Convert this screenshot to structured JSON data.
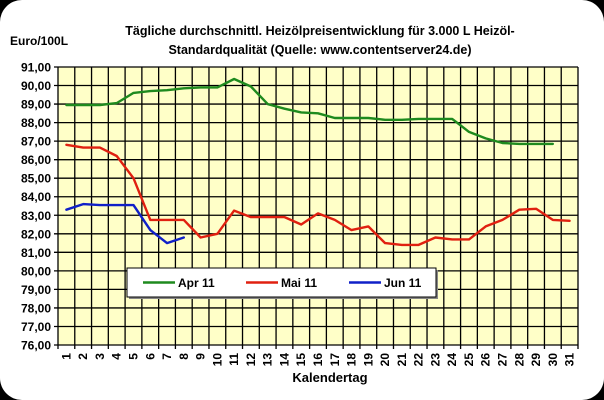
{
  "chart": {
    "title_line1": "Tägliche durchschnittl. Heizölpreisentwicklung für 3.000 L Heizöl-",
    "title_line2": "Standardqualität (Quelle: www.contentserver24.de)",
    "y_unit_label": "Euro/100L",
    "x_axis_label": "Kalendertag"
  },
  "chart_data": {
    "type": "line",
    "title": "Tägliche durchschnittl. Heizölpreisentwicklung für 3.000 L Heizöl-Standardqualität (Quelle: www.contentserver24.de)",
    "xlabel": "Kalendertag",
    "ylabel": "Euro/100L",
    "ylim": [
      76,
      91
    ],
    "yticks": [
      "91,00",
      "90,00",
      "89,00",
      "88,00",
      "87,00",
      "86,00",
      "85,00",
      "84,00",
      "83,00",
      "82,00",
      "81,00",
      "80,00",
      "79,00",
      "78,00",
      "77,00",
      "76,00"
    ],
    "x": [
      1,
      2,
      3,
      4,
      5,
      6,
      7,
      8,
      9,
      10,
      11,
      12,
      13,
      14,
      15,
      16,
      17,
      18,
      19,
      20,
      21,
      22,
      23,
      24,
      25,
      26,
      27,
      28,
      29,
      30,
      31
    ],
    "grid": true,
    "legend_position": "inside-bottom-left",
    "background_color": "#FFFFC8",
    "series": [
      {
        "name": "Apr 11",
        "color": "#1E8A1E",
        "values": [
          88.95,
          88.95,
          88.95,
          89.05,
          89.6,
          89.7,
          89.75,
          89.85,
          89.9,
          89.9,
          90.35,
          89.95,
          89.0,
          88.75,
          88.55,
          88.5,
          88.25,
          88.25,
          88.25,
          88.15,
          88.15,
          88.2,
          88.2,
          88.2,
          87.5,
          87.15,
          86.9,
          86.85,
          86.85,
          86.85,
          null
        ]
      },
      {
        "name": "Mai 11",
        "color": "#E02010",
        "values": [
          86.8,
          86.65,
          86.65,
          86.2,
          85.0,
          82.75,
          82.75,
          82.75,
          81.8,
          82.0,
          83.25,
          82.9,
          82.9,
          82.9,
          82.5,
          83.1,
          82.75,
          82.2,
          82.4,
          81.5,
          81.4,
          81.4,
          81.8,
          81.7,
          81.7,
          82.4,
          82.75,
          83.3,
          83.35,
          82.75,
          82.7
        ]
      },
      {
        "name": "Jun 11",
        "color": "#1020C8",
        "values": [
          83.3,
          83.6,
          83.55,
          83.55,
          83.55,
          82.2,
          81.5,
          81.8,
          null,
          null,
          null,
          null,
          null,
          null,
          null,
          null,
          null,
          null,
          null,
          null,
          null,
          null,
          null,
          null,
          null,
          null,
          null,
          null,
          null,
          null,
          null
        ]
      }
    ]
  }
}
